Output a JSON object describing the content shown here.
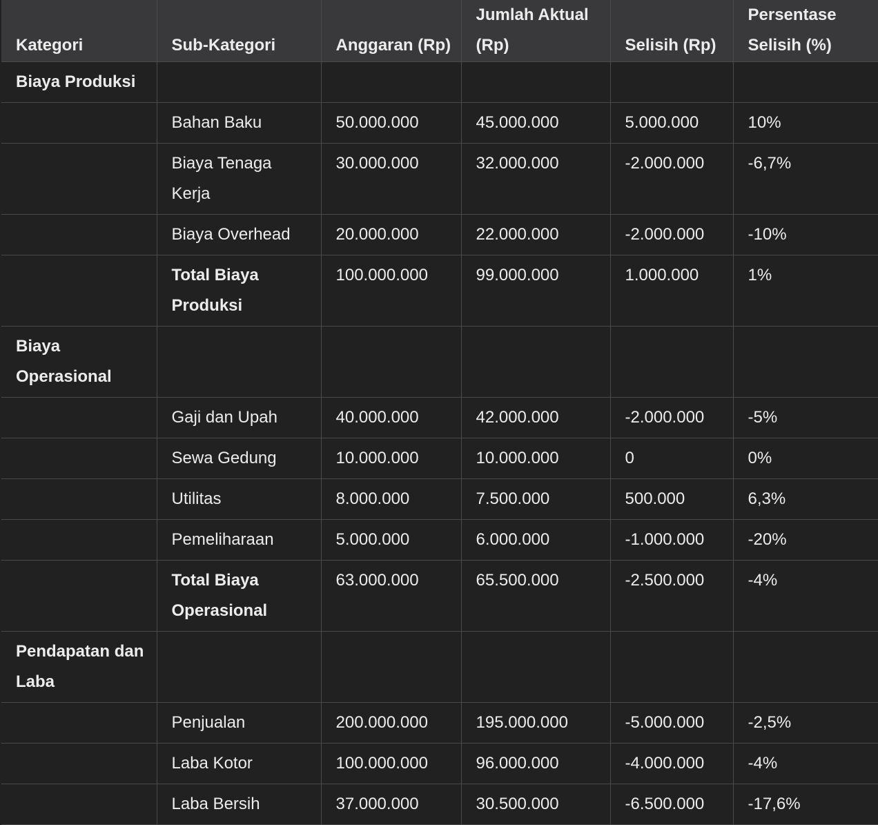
{
  "table": {
    "headers": [
      "Kategori",
      "Sub-Kategori",
      "Anggaran (Rp)",
      "Jumlah Aktual (Rp)",
      "Selisih (Rp)",
      "Persentase Selisih (%)"
    ],
    "rows": [
      {
        "category": "Biaya Produksi",
        "cells": [
          "",
          "",
          "",
          "",
          ""
        ]
      },
      {
        "category": "",
        "cells": [
          "Bahan Baku",
          "50.000.000",
          "45.000.000",
          "5.000.000",
          "10%"
        ]
      },
      {
        "category": "",
        "cells": [
          "Biaya Tenaga Kerja",
          "30.000.000",
          "32.000.000",
          "-2.000.000",
          "-6,7%"
        ]
      },
      {
        "category": "",
        "cells": [
          "Biaya Overhead",
          "20.000.000",
          "22.000.000",
          "-2.000.000",
          "-10%"
        ]
      },
      {
        "category": "",
        "total": true,
        "cells": [
          "Total Biaya Produksi",
          "100.000.000",
          "99.000.000",
          "1.000.000",
          "1%"
        ]
      },
      {
        "category": "Biaya Operasional",
        "cells": [
          "",
          "",
          "",
          "",
          ""
        ]
      },
      {
        "category": "",
        "cells": [
          "Gaji dan Upah",
          "40.000.000",
          "42.000.000",
          "-2.000.000",
          "-5%"
        ]
      },
      {
        "category": "",
        "cells": [
          "Sewa Gedung",
          "10.000.000",
          "10.000.000",
          "0",
          "0%"
        ]
      },
      {
        "category": "",
        "cells": [
          "Utilitas",
          "8.000.000",
          "7.500.000",
          "500.000",
          "6,3%"
        ]
      },
      {
        "category": "",
        "cells": [
          "Pemeliharaan",
          "5.000.000",
          "6.000.000",
          "-1.000.000",
          "-20%"
        ]
      },
      {
        "category": "",
        "total": true,
        "cells": [
          "Total Biaya Operasional",
          "63.000.000",
          "65.500.000",
          "-2.500.000",
          "-4%"
        ]
      },
      {
        "category": "Pendapatan dan Laba",
        "cells": [
          "",
          "",
          "",
          "",
          ""
        ]
      },
      {
        "category": "",
        "cells": [
          "Penjualan",
          "200.000.000",
          "195.000.000",
          "-5.000.000",
          "-2,5%"
        ]
      },
      {
        "category": "",
        "cells": [
          "Laba Kotor",
          "100.000.000",
          "96.000.000",
          "-4.000.000",
          "-4%"
        ]
      },
      {
        "category": "",
        "cells": [
          "Laba Bersih",
          "37.000.000",
          "30.500.000",
          "-6.500.000",
          "-17,6%"
        ]
      }
    ]
  }
}
